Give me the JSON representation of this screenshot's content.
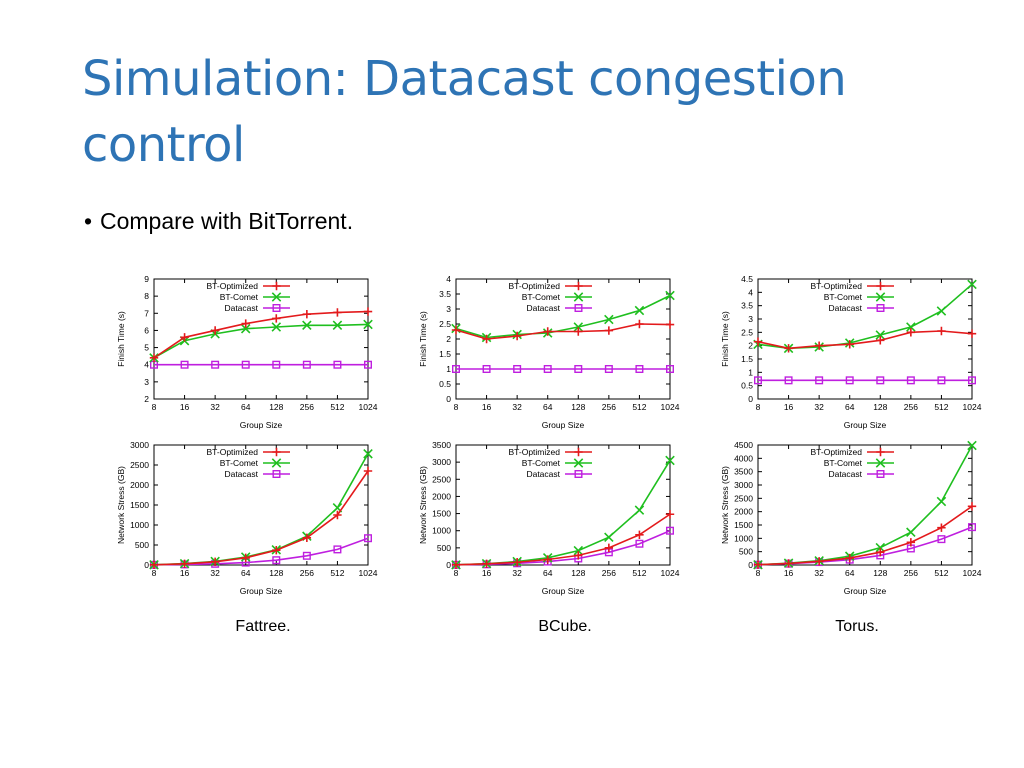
{
  "slide": {
    "title": "Simulation: Datacast congestion control",
    "bullet": "Compare with BitTorrent."
  },
  "colors": {
    "title": "#2e74b5",
    "bt_optimized": "#e31a1c",
    "bt_comet": "#1fbf1f",
    "datacast": "#bf1fdf"
  },
  "captions": [
    "Fattree.",
    "BCube.",
    "Torus."
  ],
  "chart_data": [
    {
      "type": "line",
      "xlabel": "Group Size",
      "ylabel": "Finish Time (s)",
      "categories": [
        "8",
        "16",
        "32",
        "64",
        "128",
        "256",
        "512",
        "1024"
      ],
      "ylim": [
        2,
        9
      ],
      "yticks": [
        2,
        3,
        4,
        5,
        6,
        7,
        8,
        9
      ],
      "series": [
        {
          "name": "BT-Optimized",
          "marker": "plus",
          "values": [
            4.4,
            5.6,
            6.0,
            6.4,
            6.7,
            6.95,
            7.05,
            7.1
          ]
        },
        {
          "name": "BT-Comet",
          "marker": "x",
          "values": [
            4.4,
            5.4,
            5.8,
            6.1,
            6.2,
            6.3,
            6.3,
            6.35
          ]
        },
        {
          "name": "Datacast",
          "marker": "square",
          "values": [
            4.0,
            4.0,
            4.0,
            4.0,
            4.0,
            4.0,
            4.0,
            4.0
          ]
        }
      ]
    },
    {
      "type": "line",
      "xlabel": "Group Size",
      "ylabel": "Finish Time (s)",
      "categories": [
        "8",
        "16",
        "32",
        "64",
        "128",
        "256",
        "512",
        "1024"
      ],
      "ylim": [
        0,
        4
      ],
      "yticks": [
        0,
        0.5,
        1,
        1.5,
        2,
        2.5,
        3,
        3.5,
        4
      ],
      "series": [
        {
          "name": "BT-Optimized",
          "marker": "plus",
          "values": [
            2.3,
            2.0,
            2.1,
            2.25,
            2.25,
            2.28,
            2.5,
            2.48
          ]
        },
        {
          "name": "BT-Comet",
          "marker": "x",
          "values": [
            2.35,
            2.05,
            2.15,
            2.2,
            2.4,
            2.65,
            2.95,
            3.45
          ]
        },
        {
          "name": "Datacast",
          "marker": "square",
          "values": [
            1.0,
            1.0,
            1.0,
            1.0,
            1.0,
            1.0,
            1.0,
            1.0
          ]
        }
      ]
    },
    {
      "type": "line",
      "xlabel": "Group Size",
      "ylabel": "Finish Time (s)",
      "categories": [
        "8",
        "16",
        "32",
        "64",
        "128",
        "256",
        "512",
        "1024"
      ],
      "ylim": [
        0,
        4.5
      ],
      "yticks": [
        0,
        0.5,
        1,
        1.5,
        2,
        2.5,
        3,
        3.5,
        4,
        4.5
      ],
      "series": [
        {
          "name": "BT-Optimized",
          "marker": "plus",
          "values": [
            2.15,
            1.9,
            2.0,
            2.05,
            2.2,
            2.5,
            2.55,
            2.45
          ]
        },
        {
          "name": "BT-Comet",
          "marker": "x",
          "values": [
            2.05,
            1.9,
            1.95,
            2.1,
            2.4,
            2.7,
            3.3,
            4.3
          ]
        },
        {
          "name": "Datacast",
          "marker": "square",
          "values": [
            0.7,
            0.7,
            0.7,
            0.7,
            0.7,
            0.7,
            0.7,
            0.7
          ]
        }
      ]
    },
    {
      "type": "line",
      "xlabel": "Group Size",
      "ylabel": "Network Stress (GB)",
      "categories": [
        "8",
        "16",
        "32",
        "64",
        "128",
        "256",
        "512",
        "1024"
      ],
      "ylim": [
        0,
        3000
      ],
      "yticks": [
        0,
        500,
        1000,
        1500,
        2000,
        2500,
        3000
      ],
      "series": [
        {
          "name": "BT-Optimized",
          "marker": "plus",
          "values": [
            5,
            30,
            80,
            180,
            370,
            680,
            1250,
            2350
          ]
        },
        {
          "name": "BT-Comet",
          "marker": "x",
          "values": [
            5,
            35,
            90,
            200,
            380,
            720,
            1430,
            2780
          ]
        },
        {
          "name": "Datacast",
          "marker": "square",
          "values": [
            5,
            15,
            30,
            60,
            120,
            230,
            390,
            670
          ]
        }
      ]
    },
    {
      "type": "line",
      "xlabel": "Group Size",
      "ylabel": "Network Stress (GB)",
      "categories": [
        "8",
        "16",
        "32",
        "64",
        "128",
        "256",
        "512",
        "1024"
      ],
      "ylim": [
        0,
        3500
      ],
      "yticks": [
        0,
        500,
        1000,
        1500,
        2000,
        2500,
        3000,
        3500
      ],
      "series": [
        {
          "name": "BT-Optimized",
          "marker": "plus",
          "values": [
            5,
            35,
            80,
            160,
            280,
            500,
            880,
            1480
          ]
        },
        {
          "name": "BT-Comet",
          "marker": "x",
          "values": [
            5,
            40,
            100,
            210,
            420,
            810,
            1600,
            3050
          ]
        },
        {
          "name": "Datacast",
          "marker": "square",
          "values": [
            5,
            20,
            50,
            100,
            190,
            370,
            620,
            1000
          ]
        }
      ]
    },
    {
      "type": "line",
      "xlabel": "Group Size",
      "ylabel": "Network Stress (GB)",
      "categories": [
        "8",
        "16",
        "32",
        "64",
        "128",
        "256",
        "512",
        "1024"
      ],
      "ylim": [
        0,
        4500
      ],
      "yticks": [
        0,
        500,
        1000,
        1500,
        2000,
        2500,
        3000,
        3500,
        4000,
        4500
      ],
      "series": [
        {
          "name": "BT-Optimized",
          "marker": "plus",
          "values": [
            10,
            60,
            140,
            260,
            480,
            850,
            1400,
            2200
          ]
        },
        {
          "name": "BT-Comet",
          "marker": "x",
          "values": [
            10,
            70,
            160,
            330,
            650,
            1230,
            2380,
            4480
          ]
        },
        {
          "name": "Datacast",
          "marker": "square",
          "values": [
            10,
            50,
            110,
            200,
            360,
            620,
            970,
            1420
          ]
        }
      ]
    }
  ]
}
